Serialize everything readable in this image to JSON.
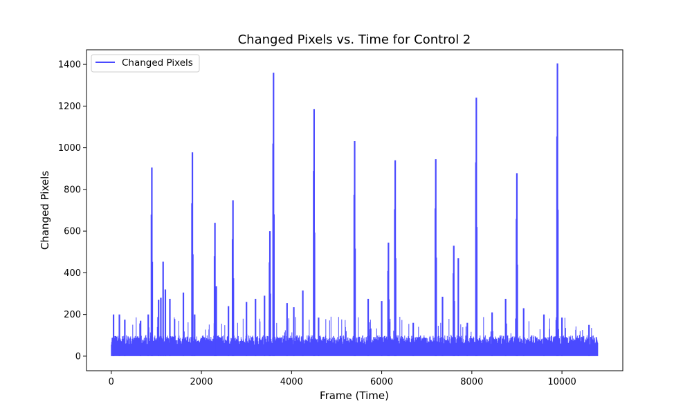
{
  "chart_data": {
    "type": "line",
    "title": "Changed Pixels vs. Time for Control 2",
    "xlabel": "Frame (Time)",
    "ylabel": "Changed Pixels",
    "xlim": [
      -550,
      11350
    ],
    "ylim": [
      -70,
      1470
    ],
    "xticks": [
      0,
      2000,
      4000,
      6000,
      8000,
      10000
    ],
    "yticks": [
      0,
      200,
      400,
      600,
      800,
      1000,
      1200,
      1400
    ],
    "grid": false,
    "legend_position": "top-left",
    "series": [
      {
        "name": "Changed Pixels",
        "color": "#4a4aff",
        "baseline_range": [
          0,
          10800
        ],
        "baseline_peak": 100,
        "peaks": [
          {
            "x": 50,
            "y": 200
          },
          {
            "x": 180,
            "y": 200
          },
          {
            "x": 300,
            "y": 175
          },
          {
            "x": 650,
            "y": 170
          },
          {
            "x": 820,
            "y": 200
          },
          {
            "x": 900,
            "y": 905
          },
          {
            "x": 1050,
            "y": 270
          },
          {
            "x": 1100,
            "y": 280
          },
          {
            "x": 1150,
            "y": 453
          },
          {
            "x": 1200,
            "y": 320
          },
          {
            "x": 1300,
            "y": 275
          },
          {
            "x": 1600,
            "y": 305
          },
          {
            "x": 1800,
            "y": 978
          },
          {
            "x": 1850,
            "y": 200
          },
          {
            "x": 2300,
            "y": 640
          },
          {
            "x": 2330,
            "y": 335
          },
          {
            "x": 2600,
            "y": 240
          },
          {
            "x": 2700,
            "y": 748
          },
          {
            "x": 3000,
            "y": 260
          },
          {
            "x": 3200,
            "y": 275
          },
          {
            "x": 3400,
            "y": 290
          },
          {
            "x": 3520,
            "y": 600
          },
          {
            "x": 3600,
            "y": 1360
          },
          {
            "x": 3900,
            "y": 255
          },
          {
            "x": 4050,
            "y": 235
          },
          {
            "x": 4250,
            "y": 315
          },
          {
            "x": 4500,
            "y": 1185
          },
          {
            "x": 4600,
            "y": 185
          },
          {
            "x": 5400,
            "y": 1032
          },
          {
            "x": 5700,
            "y": 275
          },
          {
            "x": 6000,
            "y": 265
          },
          {
            "x": 6150,
            "y": 545
          },
          {
            "x": 6300,
            "y": 940
          },
          {
            "x": 6700,
            "y": 160
          },
          {
            "x": 7200,
            "y": 945
          },
          {
            "x": 7350,
            "y": 285
          },
          {
            "x": 7600,
            "y": 530
          },
          {
            "x": 7700,
            "y": 470
          },
          {
            "x": 7900,
            "y": 160
          },
          {
            "x": 8100,
            "y": 1240
          },
          {
            "x": 8450,
            "y": 210
          },
          {
            "x": 8750,
            "y": 275
          },
          {
            "x": 9000,
            "y": 878
          },
          {
            "x": 9150,
            "y": 230
          },
          {
            "x": 9600,
            "y": 200
          },
          {
            "x": 9900,
            "y": 1405
          },
          {
            "x": 10000,
            "y": 185
          },
          {
            "x": 10600,
            "y": 150
          }
        ]
      }
    ]
  }
}
